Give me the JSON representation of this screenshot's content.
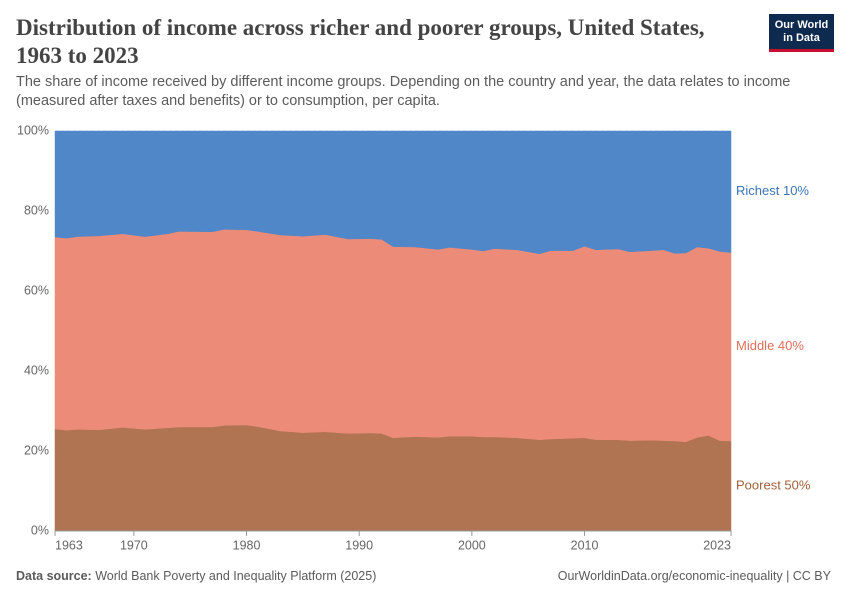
{
  "chart_data": {
    "type": "stacked-area",
    "title": "Distribution of income across richer and poorer groups, United States, 1963 to 2023",
    "subtitle": "The share of income received by different income groups. Depending on the country and year, the data relates to income (measured after taxes and benefits) or to consumption, per capita.",
    "logo": [
      "Our World",
      "in Data"
    ],
    "source_label": "Data source:",
    "source": "World Bank Poverty and Inequality Platform (2025)",
    "credit": "OurWorldinData.org/economic-inequality | CC BY",
    "x": [
      1963,
      1964,
      1965,
      1967,
      1969,
      1971,
      1973,
      1974,
      1977,
      1978,
      1980,
      1981,
      1983,
      1985,
      1987,
      1989,
      1991,
      1992,
      1993,
      1995,
      1997,
      1998,
      2000,
      2001,
      2002,
      2004,
      2006,
      2007,
      2009,
      2010,
      2011,
      2013,
      2014,
      2016,
      2017,
      2018,
      2019,
      2020,
      2021,
      2022,
      2023
    ],
    "series": [
      {
        "name": "Poorest 50%",
        "color": "#b07453",
        "label_color": "#a0603b",
        "values": [
          25.5,
          25.2,
          25.4,
          25.3,
          25.9,
          25.4,
          25.8,
          26.0,
          26.0,
          26.4,
          26.5,
          26.1,
          25.0,
          24.6,
          24.8,
          24.4,
          24.5,
          24.4,
          23.3,
          23.6,
          23.4,
          23.7,
          23.7,
          23.5,
          23.5,
          23.3,
          22.8,
          23.0,
          23.2,
          23.3,
          22.8,
          22.8,
          22.6,
          22.7,
          22.6,
          22.5,
          22.3,
          23.4,
          23.9,
          22.6,
          22.5
        ]
      },
      {
        "name": "Middle 40%",
        "color": "#eb8b78",
        "label_color": "#e0705a",
        "values": [
          48.0,
          48.0,
          48.2,
          48.5,
          48.4,
          48.2,
          48.5,
          48.9,
          48.8,
          49.0,
          48.8,
          48.8,
          49.0,
          49.1,
          49.3,
          48.6,
          48.6,
          48.5,
          47.8,
          47.4,
          47.0,
          47.2,
          46.7,
          46.5,
          47.1,
          47.0,
          46.5,
          47.1,
          46.9,
          47.9,
          47.5,
          47.7,
          47.2,
          47.4,
          47.7,
          46.9,
          47.2,
          47.6,
          46.8,
          47.3,
          47.1
        ]
      },
      {
        "name": "Richest 10%",
        "color": "#5087c8",
        "label_color": "#3b75b8",
        "values": [
          26.5,
          26.8,
          26.4,
          26.2,
          25.7,
          26.4,
          25.7,
          25.1,
          25.2,
          24.6,
          24.7,
          25.1,
          26.0,
          26.3,
          25.9,
          27.0,
          26.9,
          27.1,
          28.9,
          29.0,
          29.6,
          29.1,
          29.6,
          30.0,
          29.4,
          29.7,
          30.7,
          29.9,
          29.9,
          28.8,
          29.7,
          29.5,
          30.2,
          29.9,
          29.7,
          30.6,
          30.5,
          29.0,
          29.3,
          30.1,
          30.4
        ]
      }
    ],
    "xlim": [
      1963,
      2023
    ],
    "xticks": [
      1963,
      1970,
      1980,
      1990,
      2000,
      2010,
      2023
    ],
    "ylim": [
      0,
      100
    ],
    "yticks": [
      {
        "value": 0,
        "label": "0%"
      },
      {
        "value": 20,
        "label": "20%"
      },
      {
        "value": 40,
        "label": "40%"
      },
      {
        "value": 60,
        "label": "60%"
      },
      {
        "value": 80,
        "label": "80%"
      },
      {
        "value": 100,
        "label": "100%"
      }
    ],
    "grid": true
  }
}
